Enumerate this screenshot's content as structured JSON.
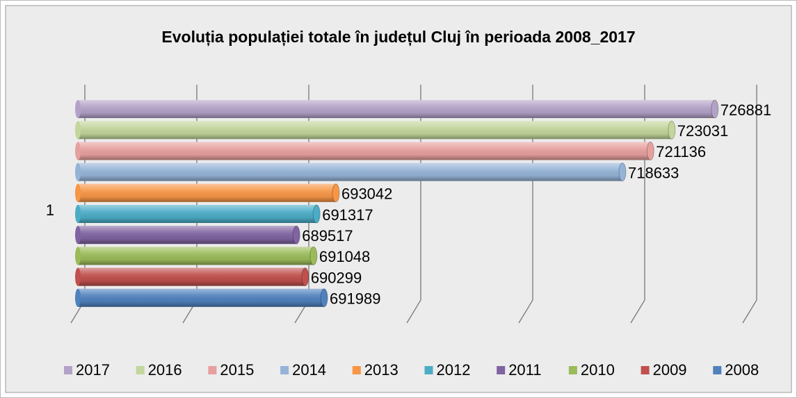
{
  "chart_data": {
    "type": "bar3d-horizontal",
    "title": "Evoluția populației totale în județul Cluj în perioada 2008_2017",
    "categories": [
      "1"
    ],
    "series": [
      {
        "name": "2017",
        "color": "#b3a2c7",
        "values": [
          726881
        ]
      },
      {
        "name": "2016",
        "color": "#c3d69b",
        "values": [
          723031
        ]
      },
      {
        "name": "2015",
        "color": "#e6a09e",
        "values": [
          721136
        ]
      },
      {
        "name": "2014",
        "color": "#95b3d7",
        "values": [
          718633
        ]
      },
      {
        "name": "2013",
        "color": "#f79646",
        "values": [
          693042
        ]
      },
      {
        "name": "2012",
        "color": "#4bacc6",
        "values": [
          691317
        ]
      },
      {
        "name": "2011",
        "color": "#8064a2",
        "values": [
          689517
        ]
      },
      {
        "name": "2010",
        "color": "#9bbb59",
        "values": [
          691048
        ]
      },
      {
        "name": "2009",
        "color": "#c0504d",
        "values": [
          690299
        ]
      },
      {
        "name": "2008",
        "color": "#4f81bd",
        "values": [
          691989
        ]
      }
    ],
    "xlim": [
      670000,
      730000
    ],
    "xticks": [
      670000,
      680000,
      690000,
      700000,
      710000,
      720000,
      730000
    ],
    "grid": true,
    "legend": "bottom"
  }
}
